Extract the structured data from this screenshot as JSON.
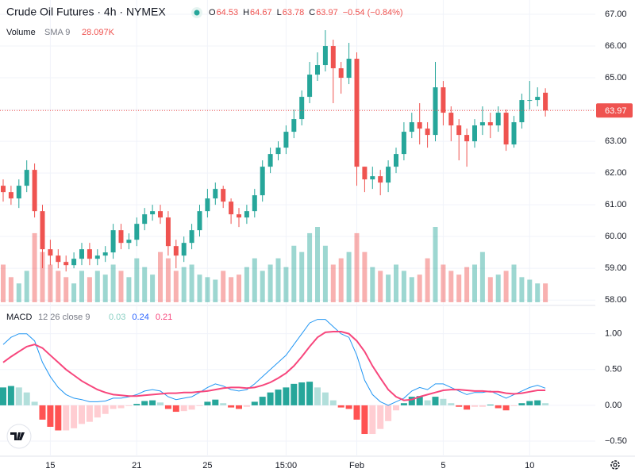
{
  "header": {
    "title": "Crude Oil Futures · 4h · NYMEX",
    "ohlc": [
      {
        "label": "O",
        "value": 64.53
      },
      {
        "label": "H",
        "value": 64.67
      },
      {
        "label": "L",
        "value": 63.78
      },
      {
        "label": "C",
        "value": 63.97
      }
    ],
    "change": "−0.54 (−0.84%)"
  },
  "volume_legend": {
    "name": "Volume",
    "params": "SMA 9",
    "value": "28.097K"
  },
  "macd_legend": {
    "name": "MACD",
    "params": "12 26 close 9"
  },
  "chart_data": [
    {
      "type": "candlestick",
      "categories": [
        null,
        null,
        null,
        null,
        null,
        null,
        "15",
        null,
        null,
        null,
        null,
        null,
        null,
        null,
        null,
        null,
        null,
        "21",
        null,
        null,
        null,
        null,
        null,
        null,
        null,
        null,
        "25",
        null,
        null,
        null,
        null,
        null,
        null,
        null,
        null,
        null,
        "15:00",
        null,
        null,
        null,
        null,
        null,
        null,
        null,
        null,
        "Feb",
        null,
        null,
        null,
        null,
        null,
        null,
        null,
        null,
        null,
        null,
        "5",
        null,
        null,
        null,
        null,
        null,
        null,
        null,
        null,
        null,
        null,
        "10",
        null,
        null
      ],
      "open": [
        61.6,
        61.4,
        61.2,
        61.6,
        62.1,
        60.8,
        59.6,
        59.4,
        59.2,
        59.1,
        59.3,
        59.6,
        59.3,
        59.4,
        59.5,
        60.2,
        59.8,
        59.9,
        60.4,
        60.7,
        60.8,
        60.6,
        59.7,
        59.4,
        59.8,
        60.2,
        60.8,
        61.2,
        61.5,
        61.1,
        60.7,
        60.6,
        60.8,
        61.3,
        62.2,
        62.6,
        62.8,
        63.3,
        63.7,
        64.4,
        65.1,
        65.4,
        66.0,
        65.3,
        65.0,
        65.6,
        62.2,
        61.8,
        61.9,
        61.7,
        62.2,
        62.6,
        63.3,
        63.6,
        63.4,
        63.2,
        64.7,
        63.9,
        63.5,
        63.2,
        63.0,
        63.5,
        63.6,
        63.5,
        63.9,
        62.9,
        63.6,
        64.3,
        64.3,
        64.53
      ],
      "high": [
        61.8,
        61.6,
        61.8,
        62.4,
        62.3,
        61.0,
        59.9,
        59.6,
        59.4,
        59.5,
        59.8,
        59.8,
        59.6,
        59.7,
        60.4,
        60.4,
        60.1,
        60.6,
        60.9,
        61.0,
        61.0,
        60.8,
        59.9,
        60.0,
        60.4,
        61.0,
        61.5,
        61.7,
        61.6,
        61.2,
        60.9,
        61.0,
        61.5,
        62.4,
        62.8,
        63.0,
        63.5,
        64.0,
        64.6,
        65.5,
        65.8,
        66.5,
        66.2,
        65.5,
        66.1,
        65.8,
        62.2,
        62.2,
        62.1,
        62.4,
        62.8,
        63.6,
        63.9,
        64.2,
        63.6,
        65.5,
        64.9,
        64.1,
        63.7,
        63.4,
        63.7,
        64.1,
        63.9,
        64.1,
        64.0,
        63.8,
        64.5,
        64.9,
        64.7,
        64.67
      ],
      "low": [
        61.1,
        61.0,
        60.9,
        61.4,
        60.6,
        59.0,
        59.1,
        59.0,
        58.9,
        59.0,
        59.1,
        59.1,
        59.1,
        59.2,
        59.3,
        59.6,
        59.6,
        59.7,
        60.2,
        60.5,
        60.4,
        59.4,
        59.0,
        59.2,
        59.6,
        60.0,
        60.6,
        61.0,
        60.9,
        60.4,
        60.3,
        60.4,
        60.6,
        61.1,
        62.0,
        62.4,
        62.6,
        63.1,
        63.5,
        64.2,
        64.9,
        65.2,
        64.2,
        64.5,
        64.8,
        61.6,
        61.4,
        61.5,
        61.3,
        61.4,
        62.0,
        62.4,
        63.1,
        62.9,
        62.8,
        63.0,
        63.5,
        63.0,
        62.4,
        62.2,
        62.8,
        63.2,
        63.1,
        63.3,
        62.7,
        62.8,
        63.4,
        64.0,
        64.1,
        63.78
      ],
      "close": [
        61.4,
        61.2,
        61.6,
        62.1,
        60.8,
        59.6,
        59.4,
        59.2,
        59.1,
        59.3,
        59.6,
        59.3,
        59.4,
        59.5,
        60.2,
        59.8,
        59.9,
        60.4,
        60.7,
        60.8,
        60.6,
        59.7,
        59.4,
        59.8,
        60.2,
        60.8,
        61.2,
        61.5,
        61.1,
        60.7,
        60.6,
        60.8,
        61.3,
        62.2,
        62.6,
        62.8,
        63.3,
        63.7,
        64.4,
        65.1,
        65.4,
        66.0,
        65.3,
        65.0,
        65.6,
        62.2,
        61.8,
        61.9,
        61.7,
        62.2,
        62.6,
        63.3,
        63.6,
        63.4,
        63.2,
        64.7,
        63.9,
        63.5,
        63.2,
        63.0,
        63.5,
        63.6,
        63.5,
        63.9,
        62.9,
        63.6,
        64.3,
        64.3,
        64.4,
        63.97
      ],
      "volume": [
        30,
        20,
        15,
        25,
        55,
        40,
        30,
        25,
        20,
        15,
        25,
        20,
        25,
        22,
        30,
        25,
        20,
        35,
        28,
        22,
        40,
        35,
        25,
        28,
        30,
        22,
        20,
        18,
        25,
        20,
        22,
        28,
        35,
        25,
        30,
        35,
        28,
        45,
        40,
        55,
        60,
        45,
        30,
        35,
        40,
        55,
        40,
        28,
        25,
        22,
        30,
        25,
        20,
        22,
        35,
        60,
        30,
        25,
        22,
        28,
        30,
        40,
        20,
        22,
        25,
        30,
        20,
        18,
        15,
        15
      ],
      "up_color": "#26a69a",
      "down_color": "#ef5350",
      "ylim": [
        57.88,
        67.45
      ],
      "yticks": [
        {
          "value": 67,
          "label": "67.00"
        },
        {
          "value": 66,
          "label": "66.00"
        },
        {
          "value": 65,
          "label": "65.00"
        },
        {
          "value": 64,
          "label": "64.00"
        },
        {
          "value": 63,
          "label": "63.00"
        },
        {
          "value": 62,
          "label": "62.00"
        },
        {
          "value": 61,
          "label": "61.00"
        },
        {
          "value": 60,
          "label": "60.00"
        },
        {
          "value": 59,
          "label": "59.00"
        },
        {
          "value": 58,
          "label": "58.00"
        }
      ],
      "grid": true
    },
    {
      "type": "macd",
      "histogram": [
        0.25,
        0.27,
        0.25,
        0.18,
        0.05,
        -0.2,
        -0.3,
        -0.35,
        -0.35,
        -0.32,
        -0.26,
        -0.23,
        -0.17,
        -0.12,
        -0.05,
        -0.04,
        -0.01,
        0.02,
        0.06,
        0.07,
        0.04,
        -0.05,
        -0.09,
        -0.08,
        -0.06,
        -0.01,
        0.05,
        0.08,
        0.03,
        -0.03,
        -0.05,
        -0.02,
        0.05,
        0.12,
        0.18,
        0.22,
        0.25,
        0.3,
        0.32,
        0.33,
        0.25,
        0.18,
        0.07,
        -0.03,
        -0.05,
        -0.2,
        -0.4,
        -0.4,
        -0.33,
        -0.22,
        -0.07,
        0.03,
        0.12,
        0.13,
        0.07,
        0.12,
        0.09,
        0.03,
        -0.02,
        -0.06,
        -0.02,
        -0.02,
        0.01,
        -0.04,
        -0.07,
        -0.01,
        0.03,
        0.06,
        0.07,
        0.03
      ],
      "histogram_colors": [
        "#26a69a",
        "#b2dfdb",
        "#ffcdd2",
        "#ff5252"
      ],
      "series": [
        {
          "name": "MACD",
          "color": "#2196f3",
          "values": [
            0.85,
            0.95,
            1.0,
            1.0,
            0.9,
            0.6,
            0.4,
            0.25,
            0.15,
            0.1,
            0.08,
            0.05,
            0.05,
            0.06,
            0.1,
            0.1,
            0.12,
            0.15,
            0.2,
            0.22,
            0.2,
            0.12,
            0.08,
            0.1,
            0.12,
            0.18,
            0.25,
            0.3,
            0.27,
            0.22,
            0.2,
            0.22,
            0.3,
            0.4,
            0.5,
            0.6,
            0.7,
            0.85,
            1.0,
            1.15,
            1.2,
            1.2,
            1.1,
            1.0,
            0.95,
            0.7,
            0.35,
            0.15,
            0.05,
            0.0,
            0.05,
            0.1,
            0.2,
            0.25,
            0.22,
            0.3,
            0.3,
            0.25,
            0.2,
            0.15,
            0.18,
            0.18,
            0.2,
            0.15,
            0.1,
            0.15,
            0.2,
            0.25,
            0.28,
            0.24
          ]
        },
        {
          "name": "Signal",
          "color": "#f7467c",
          "values": [
            0.6,
            0.68,
            0.75,
            0.82,
            0.85,
            0.8,
            0.7,
            0.6,
            0.5,
            0.42,
            0.34,
            0.28,
            0.22,
            0.18,
            0.15,
            0.14,
            0.13,
            0.13,
            0.14,
            0.15,
            0.16,
            0.17,
            0.17,
            0.18,
            0.18,
            0.19,
            0.2,
            0.22,
            0.24,
            0.25,
            0.25,
            0.24,
            0.25,
            0.28,
            0.32,
            0.38,
            0.45,
            0.55,
            0.68,
            0.82,
            0.95,
            1.02,
            1.03,
            1.03,
            1.0,
            0.9,
            0.75,
            0.55,
            0.38,
            0.22,
            0.12,
            0.07,
            0.08,
            0.12,
            0.15,
            0.18,
            0.21,
            0.22,
            0.22,
            0.21,
            0.2,
            0.2,
            0.19,
            0.19,
            0.17,
            0.16,
            0.17,
            0.19,
            0.21,
            0.21
          ]
        }
      ],
      "legend_values": [
        {
          "value": 0.03,
          "color": "#89cfc3"
        },
        {
          "value": 0.24,
          "color": "#2962ff"
        },
        {
          "value": 0.21,
          "color": "#f7467c"
        }
      ],
      "ylim": [
        -0.71,
        1.34
      ],
      "yticks": [
        {
          "value": 1,
          "label": "1.00"
        },
        {
          "value": 0.5,
          "label": "0.50"
        },
        {
          "value": 0,
          "label": "0.00"
        },
        {
          "value": -0.5,
          "label": "−0.50"
        }
      ],
      "grid": true
    }
  ]
}
